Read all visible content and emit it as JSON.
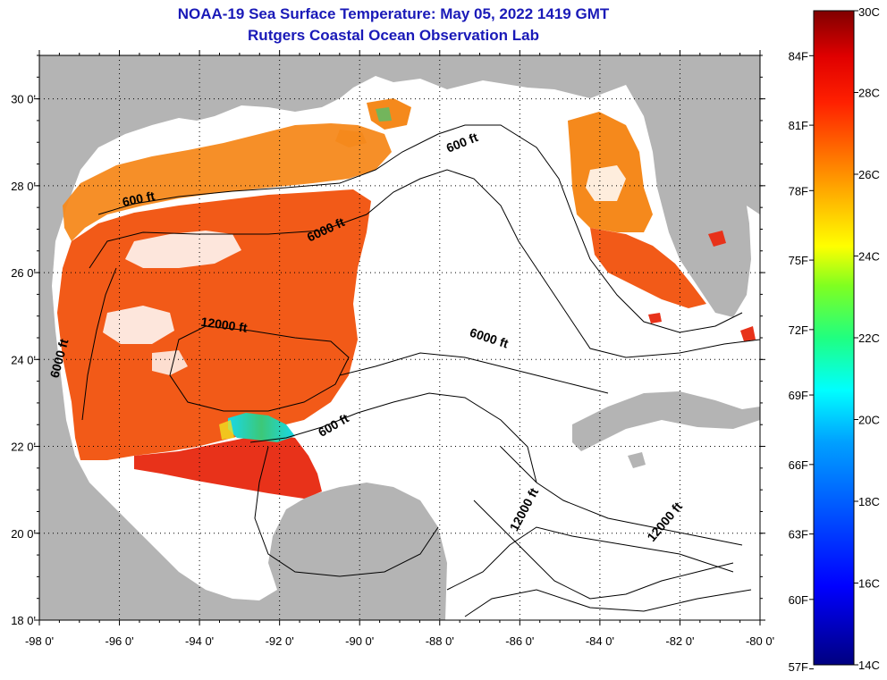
{
  "title": {
    "line1": "NOAA-19 Sea Surface Temperature:  May 05, 2022 1419 GMT",
    "line2": "Rutgers Coastal Ocean Observation Lab"
  },
  "colors": {
    "land": "#b4b4b4",
    "cloud": "#ffffff",
    "warm": "#f25a18",
    "hot": "#e8321a",
    "orange": "#f5891c",
    "yellow": "#f0e020",
    "cyan": "#18d8e8",
    "green": "#3cc878"
  },
  "map": {
    "lon_range": [
      -98,
      -80
    ],
    "lat_range": [
      18,
      31
    ],
    "lon_ticks": [
      {
        "value": -98,
        "label": "-98 0'"
      },
      {
        "value": -96,
        "label": "-96 0'"
      },
      {
        "value": -94,
        "label": "-94 0'"
      },
      {
        "value": -92,
        "label": "-92 0'"
      },
      {
        "value": -90,
        "label": "-90 0'"
      },
      {
        "value": -88,
        "label": "-88 0'"
      },
      {
        "value": -86,
        "label": "-86 0'"
      },
      {
        "value": -84,
        "label": "-84 0'"
      },
      {
        "value": -82,
        "label": "-82 0'"
      },
      {
        "value": -80,
        "label": "-80 0'"
      }
    ],
    "lat_ticks": [
      {
        "value": 30,
        "label": "30 0'"
      },
      {
        "value": 28,
        "label": "28 0'"
      },
      {
        "value": 26,
        "label": "26 0'"
      },
      {
        "value": 24,
        "label": "24 0'"
      },
      {
        "value": 22,
        "label": "22 0'"
      },
      {
        "value": 20,
        "label": "20 0'"
      },
      {
        "value": 18,
        "label": "18 0'"
      }
    ],
    "contour_labels": [
      {
        "text": "600 ft",
        "lon": -95.5,
        "lat": 27.6,
        "angle": -12
      },
      {
        "text": "6000 ft",
        "lon": -90.8,
        "lat": 26.9,
        "angle": -25
      },
      {
        "text": "600 ft",
        "lon": -87.4,
        "lat": 28.9,
        "angle": -22
      },
      {
        "text": "12000 ft",
        "lon": -93.4,
        "lat": 24.7,
        "angle": 8
      },
      {
        "text": "6000 ft",
        "lon": -97.4,
        "lat": 24.0,
        "angle": -75
      },
      {
        "text": "6000 ft",
        "lon": -86.8,
        "lat": 24.4,
        "angle": 18
      },
      {
        "text": "600 ft",
        "lon": -90.6,
        "lat": 22.4,
        "angle": -30
      },
      {
        "text": "12000 ft",
        "lon": -85.8,
        "lat": 20.5,
        "angle": -62
      },
      {
        "text": "12000 ft",
        "lon": -82.3,
        "lat": 20.2,
        "angle": -50
      }
    ]
  },
  "colorbar": {
    "min_c": 14,
    "max_c": 30,
    "celsius_labels": [
      "30C",
      "28C",
      "26C",
      "24C",
      "22C",
      "20C",
      "18C",
      "16C",
      "14C"
    ],
    "fahrenheit_labels": [
      {
        "label": "84F",
        "c": 28.9
      },
      {
        "label": "81F",
        "c": 27.2
      },
      {
        "label": "78F",
        "c": 25.6
      },
      {
        "label": "75F",
        "c": 23.9
      },
      {
        "label": "72F",
        "c": 22.2
      },
      {
        "label": "69F",
        "c": 20.6
      },
      {
        "label": "66F",
        "c": 18.9
      },
      {
        "label": "63F",
        "c": 17.2
      },
      {
        "label": "60F",
        "c": 15.6
      },
      {
        "label": "57F",
        "c": 13.9
      }
    ]
  }
}
